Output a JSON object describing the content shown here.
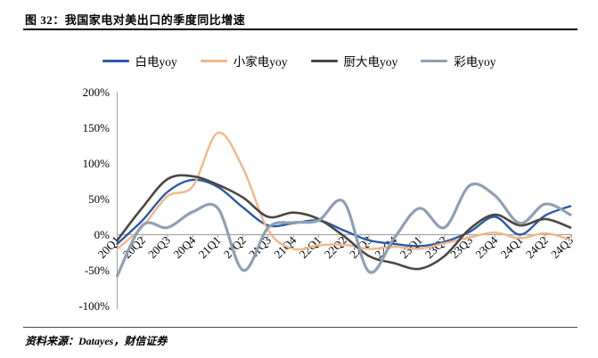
{
  "title": "图 32：我国家电对美出口的季度同比增速",
  "source": "资料来源：Datayes，财信证券",
  "colors": {
    "white_goods": "#2a5ba7",
    "small_appliance": "#f3b688",
    "kitchen_appliance": "#4b4743",
    "tv": "#8fa0b5",
    "axis": "#a6a6a6",
    "text": "#000000",
    "rule": "#000000"
  },
  "chart_data": {
    "type": "line",
    "title": "我国家电对美出口的季度同比增速",
    "smooth": true,
    "grid": "zero-line-only",
    "legend_position": "top",
    "xlabel": "",
    "ylabel": "",
    "ylim": [
      -100,
      200
    ],
    "y_tick_labels": [
      "200%",
      "150%",
      "100%",
      "50%",
      "0%",
      "-50%",
      "-100%"
    ],
    "y_tick_values": [
      200,
      150,
      100,
      50,
      0,
      -50,
      -100
    ],
    "categories": [
      "20Q1",
      "20Q2",
      "20Q3",
      "20Q4",
      "21Q1",
      "21Q2",
      "21Q3",
      "21Q4",
      "22Q1",
      "22Q2",
      "22Q3",
      "22Q4",
      "23Q1",
      "23Q2",
      "23Q3",
      "23Q4",
      "24Q1",
      "24Q2",
      "24Q3"
    ],
    "series": [
      {
        "name": "白电yoy",
        "color": "#2a5ba7",
        "stroke_width": 2.4,
        "values": [
          -13,
          20,
          60,
          77,
          67,
          38,
          13,
          16,
          20,
          6,
          -8,
          -13,
          -16,
          -10,
          4,
          25,
          0,
          27,
          40
        ]
      },
      {
        "name": "小家电yoy",
        "color": "#f3b688",
        "stroke_width": 2.4,
        "values": [
          -20,
          11,
          54,
          68,
          143,
          93,
          6,
          -20,
          -15,
          -14,
          -20,
          -17,
          -20,
          -12,
          -4,
          3,
          -5,
          2,
          -7
        ]
      },
      {
        "name": "厨大电yoy",
        "color": "#4b4743",
        "stroke_width": 2.6,
        "values": [
          -8,
          38,
          78,
          82,
          70,
          52,
          25,
          31,
          22,
          -2,
          -30,
          -40,
          -48,
          -30,
          8,
          28,
          13,
          22,
          10
        ]
      },
      {
        "name": "彩电yoy",
        "color": "#8fa0b5",
        "stroke_width": 3.2,
        "values": [
          -58,
          13,
          10,
          32,
          37,
          -50,
          10,
          17,
          20,
          46,
          -52,
          -5,
          37,
          10,
          69,
          55,
          16,
          43,
          28
        ]
      }
    ]
  }
}
